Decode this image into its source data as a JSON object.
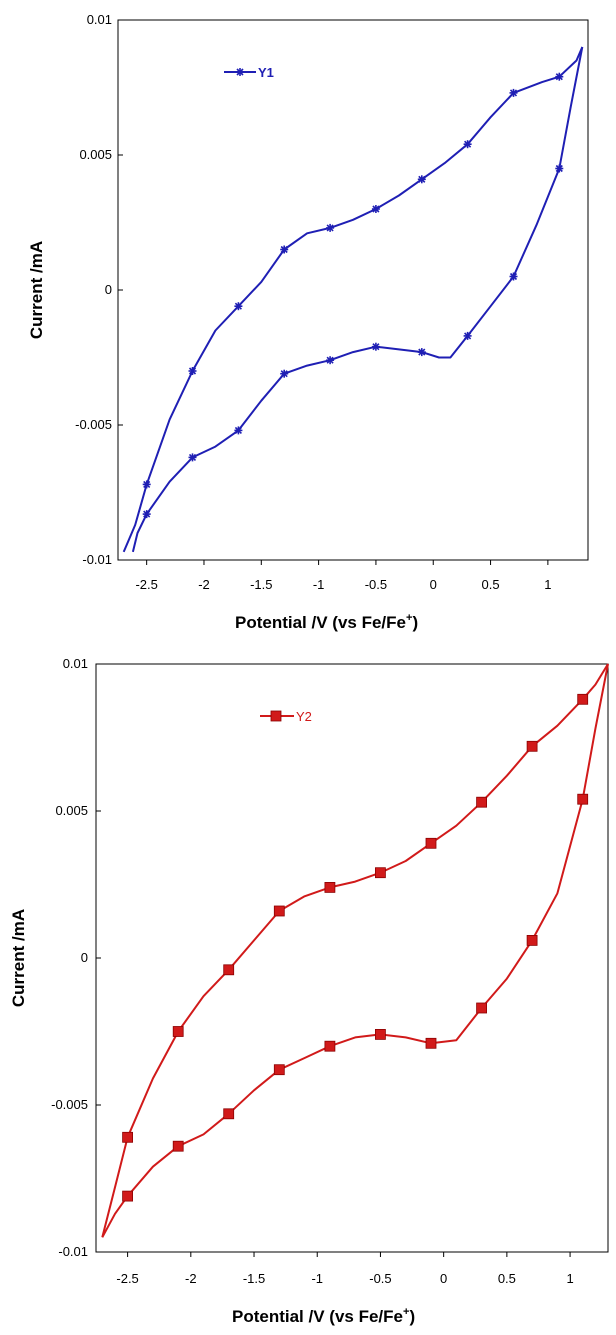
{
  "chart_data": [
    {
      "type": "line",
      "xlabel": "Potential /V (vs Fe/Fe",
      "xlabel_sup": "+",
      "xlabel_end": ")",
      "ylabel": "Current /mA",
      "xlim": [
        -2.75,
        1.35
      ],
      "ylim": [
        -0.01,
        0.01
      ],
      "x_ticks": [
        -2.5,
        -2,
        -1.5,
        -1,
        -0.5,
        0,
        0.5,
        1
      ],
      "x_tick_labels": [
        "-2.5",
        "-2",
        "-1.5",
        "-1",
        "-0.5",
        "0",
        "0.5",
        "1"
      ],
      "y_ticks": [
        0.01,
        0.005,
        0,
        -0.005,
        -0.01
      ],
      "y_tick_labels": [
        "0.01",
        "0.005",
        "0",
        "-0.005",
        "-0.01"
      ],
      "grid": false,
      "legend": "top-left",
      "color": "#1f1fb4",
      "marker": "asterisk",
      "series": [
        {
          "name": "Y1",
          "curve": [
            [
              1.3,
              0.009
            ],
            [
              1.25,
              0.0085
            ],
            [
              1.1,
              0.0079
            ],
            [
              0.95,
              0.0077
            ],
            [
              0.7,
              0.0073
            ],
            [
              0.5,
              0.0064
            ],
            [
              0.3,
              0.0054
            ],
            [
              0.1,
              0.0047
            ],
            [
              -0.1,
              0.0041
            ],
            [
              -0.3,
              0.0035
            ],
            [
              -0.5,
              0.003
            ],
            [
              -0.7,
              0.0026
            ],
            [
              -0.9,
              0.0023
            ],
            [
              -1.1,
              0.0021
            ],
            [
              -1.3,
              0.0015
            ],
            [
              -1.5,
              0.0003
            ],
            [
              -1.7,
              -0.0006
            ],
            [
              -1.9,
              -0.0015
            ],
            [
              -2.1,
              -0.003
            ],
            [
              -2.3,
              -0.0048
            ],
            [
              -2.5,
              -0.0072
            ],
            [
              -2.6,
              -0.0087
            ],
            [
              -2.7,
              -0.0097
            ]
          ],
          "curve_return": [
            [
              -2.62,
              -0.0097
            ],
            [
              -2.58,
              -0.009
            ],
            [
              -2.5,
              -0.0083
            ],
            [
              -2.3,
              -0.0071
            ],
            [
              -2.1,
              -0.0062
            ],
            [
              -1.9,
              -0.0058
            ],
            [
              -1.7,
              -0.0052
            ],
            [
              -1.5,
              -0.0041
            ],
            [
              -1.3,
              -0.0031
            ],
            [
              -1.1,
              -0.0028
            ],
            [
              -0.9,
              -0.0026
            ],
            [
              -0.7,
              -0.0023
            ],
            [
              -0.5,
              -0.0021
            ],
            [
              -0.3,
              -0.0022
            ],
            [
              -0.1,
              -0.0023
            ],
            [
              0.05,
              -0.0025
            ],
            [
              0.15,
              -0.0025
            ],
            [
              0.3,
              -0.0017
            ],
            [
              0.5,
              -0.0006
            ],
            [
              0.7,
              0.0005
            ],
            [
              0.9,
              0.0024
            ],
            [
              1.1,
              0.0045
            ],
            [
              1.2,
              0.0068
            ],
            [
              1.3,
              0.009
            ]
          ],
          "markers": [
            [
              1.1,
              0.0079
            ],
            [
              0.7,
              0.0073
            ],
            [
              0.3,
              0.0054
            ],
            [
              -0.1,
              0.0041
            ],
            [
              -0.5,
              0.003
            ],
            [
              -0.9,
              0.0023
            ],
            [
              -1.3,
              0.0015
            ],
            [
              -1.7,
              -0.0006
            ],
            [
              -2.1,
              -0.003
            ],
            [
              -2.5,
              -0.0072
            ],
            [
              -2.5,
              -0.0083
            ],
            [
              -2.1,
              -0.0062
            ],
            [
              -1.7,
              -0.0052
            ],
            [
              -1.3,
              -0.0031
            ],
            [
              -0.9,
              -0.0026
            ],
            [
              -0.5,
              -0.0021
            ],
            [
              -0.1,
              -0.0023
            ],
            [
              0.3,
              -0.0017
            ],
            [
              0.7,
              0.0005
            ],
            [
              1.1,
              0.0045
            ]
          ]
        }
      ]
    },
    {
      "type": "line",
      "xlabel": "Potential /V (vs Fe/Fe",
      "xlabel_sup": "+",
      "xlabel_end": ")",
      "ylabel": "Current /mA",
      "xlim": [
        -2.75,
        1.3
      ],
      "ylim": [
        -0.01,
        0.01
      ],
      "x_ticks": [
        -2.5,
        -2,
        -1.5,
        -1,
        -0.5,
        0,
        0.5,
        1
      ],
      "x_tick_labels": [
        "-2.5",
        "-2",
        "-1.5",
        "-1",
        "-0.5",
        "0",
        "0.5",
        "1"
      ],
      "y_ticks": [
        0.01,
        0.005,
        0,
        -0.005,
        -0.01
      ],
      "y_tick_labels": [
        "0.01",
        "0.005",
        "0",
        "-0.005",
        "-0.01"
      ],
      "grid": false,
      "legend": "top-left",
      "color": "#d11a1a",
      "marker": "square",
      "series": [
        {
          "name": "Y2",
          "curve": [
            [
              1.3,
              0.01
            ],
            [
              1.2,
              0.0093
            ],
            [
              1.1,
              0.0088
            ],
            [
              0.9,
              0.0079
            ],
            [
              0.7,
              0.0072
            ],
            [
              0.5,
              0.0062
            ],
            [
              0.3,
              0.0053
            ],
            [
              0.1,
              0.0045
            ],
            [
              -0.1,
              0.0039
            ],
            [
              -0.3,
              0.0033
            ],
            [
              -0.5,
              0.0029
            ],
            [
              -0.7,
              0.0026
            ],
            [
              -0.9,
              0.0024
            ],
            [
              -1.1,
              0.0021
            ],
            [
              -1.3,
              0.0016
            ],
            [
              -1.5,
              0.0006
            ],
            [
              -1.7,
              -0.0004
            ],
            [
              -1.9,
              -0.0013
            ],
            [
              -2.1,
              -0.0025
            ],
            [
              -2.3,
              -0.0041
            ],
            [
              -2.5,
              -0.0061
            ],
            [
              -2.6,
              -0.0078
            ],
            [
              -2.7,
              -0.0095
            ]
          ],
          "curve_return": [
            [
              -2.7,
              -0.0095
            ],
            [
              -2.6,
              -0.0087
            ],
            [
              -2.5,
              -0.0081
            ],
            [
              -2.3,
              -0.0071
            ],
            [
              -2.1,
              -0.0064
            ],
            [
              -1.9,
              -0.006
            ],
            [
              -1.7,
              -0.0053
            ],
            [
              -1.5,
              -0.0045
            ],
            [
              -1.3,
              -0.0038
            ],
            [
              -1.1,
              -0.0034
            ],
            [
              -0.9,
              -0.003
            ],
            [
              -0.7,
              -0.0027
            ],
            [
              -0.5,
              -0.0026
            ],
            [
              -0.3,
              -0.0027
            ],
            [
              -0.1,
              -0.0029
            ],
            [
              0.1,
              -0.0028
            ],
            [
              0.3,
              -0.0017
            ],
            [
              0.5,
              -0.0007
            ],
            [
              0.7,
              0.0006
            ],
            [
              0.9,
              0.0022
            ],
            [
              1.1,
              0.0054
            ],
            [
              1.2,
              0.0078
            ],
            [
              1.3,
              0.01
            ]
          ],
          "markers": [
            [
              1.1,
              0.0088
            ],
            [
              0.7,
              0.0072
            ],
            [
              0.3,
              0.0053
            ],
            [
              -0.1,
              0.0039
            ],
            [
              -0.5,
              0.0029
            ],
            [
              -0.9,
              0.0024
            ],
            [
              -1.3,
              0.0016
            ],
            [
              -1.7,
              -0.0004
            ],
            [
              -2.1,
              -0.0025
            ],
            [
              -2.5,
              -0.0061
            ],
            [
              -2.5,
              -0.0081
            ],
            [
              -2.1,
              -0.0064
            ],
            [
              -1.7,
              -0.0053
            ],
            [
              -1.3,
              -0.0038
            ],
            [
              -0.9,
              -0.003
            ],
            [
              -0.5,
              -0.0026
            ],
            [
              -0.1,
              -0.0029
            ],
            [
              0.3,
              -0.0017
            ],
            [
              0.7,
              0.0006
            ],
            [
              1.1,
              0.0054
            ]
          ]
        }
      ]
    }
  ]
}
